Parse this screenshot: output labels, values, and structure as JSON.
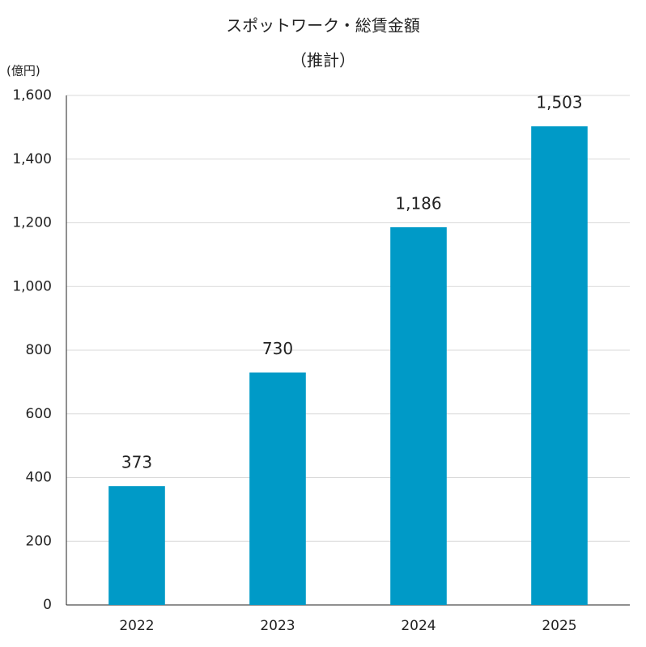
{
  "chart_data": {
    "type": "bar",
    "title": "スポットワーク・総賃金額",
    "subtitle": "（推計）",
    "y_unit_label": "(億円)",
    "categories": [
      "2022",
      "2023",
      "2024",
      "2025"
    ],
    "values": [
      373,
      730,
      1186,
      1503
    ],
    "value_labels": [
      "373",
      "730",
      "1,186",
      "1,503"
    ],
    "color": "#009ac7",
    "ylim": [
      0,
      1600
    ],
    "yticks": [
      0,
      200,
      400,
      600,
      800,
      {
        "value": 1000,
        "label": "1,000"
      },
      {
        "value": 1200,
        "label": "1,200"
      },
      {
        "value": 1400,
        "label": "1,400"
      },
      {
        "value": 1600,
        "label": "1,600"
      }
    ],
    "grid": true
  }
}
